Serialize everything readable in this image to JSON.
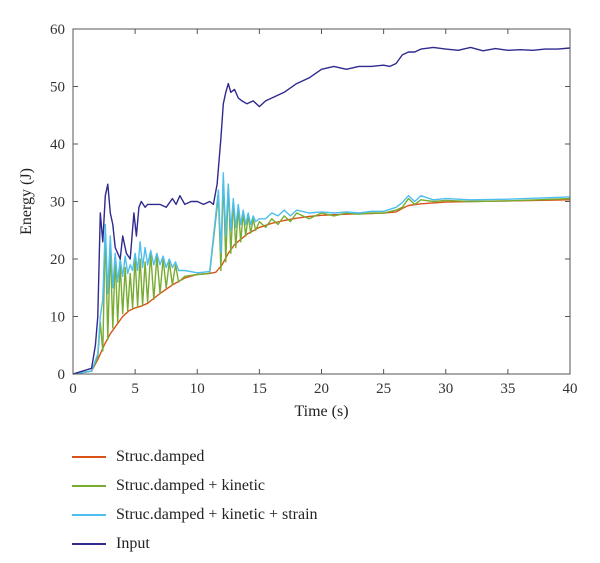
{
  "chart_data": {
    "type": "line",
    "xlabel": "Time (s)",
    "ylabel": "Energy (J)",
    "xlim": [
      0,
      40
    ],
    "ylim": [
      0,
      60
    ],
    "xticks": [
      "0",
      "5",
      "10",
      "15",
      "20",
      "25",
      "30",
      "35",
      "40"
    ],
    "yticks": [
      "0",
      "10",
      "20",
      "30",
      "40",
      "50",
      "60"
    ],
    "grid": false,
    "legend_position": "below",
    "series": [
      {
        "name": "Struc.damped",
        "color": "#d95319",
        "x": [
          0,
          1.5,
          2,
          2.5,
          3,
          3.5,
          4,
          4.5,
          5,
          5.5,
          6,
          7,
          8,
          9,
          10,
          11,
          11.5,
          12,
          12.5,
          13,
          14,
          15,
          16,
          17,
          18,
          19,
          20,
          22,
          24,
          25,
          26,
          26.5,
          27,
          28,
          30,
          32,
          35,
          40
        ],
        "y": [
          0,
          0.5,
          2.5,
          5,
          7,
          8.5,
          10,
          11,
          11.5,
          11.8,
          12.3,
          14,
          15.5,
          16.7,
          17.3,
          17.5,
          17.7,
          19,
          21,
          22.5,
          24.3,
          25.5,
          26.2,
          26.7,
          27.1,
          27.4,
          27.6,
          27.8,
          27.9,
          28,
          28.2,
          28.8,
          29.3,
          29.6,
          29.9,
          30,
          30.1,
          30.3
        ]
      },
      {
        "name": "Struc.damped + kinetic",
        "color": "#77ac30",
        "x": [
          0,
          1.5,
          2,
          2.2,
          2.4,
          2.6,
          2.8,
          3,
          3.2,
          3.4,
          3.6,
          3.8,
          4,
          4.2,
          4.4,
          4.6,
          4.8,
          5,
          5.2,
          5.4,
          5.6,
          5.8,
          6,
          6.25,
          6.5,
          6.75,
          7,
          7.25,
          7.5,
          7.75,
          8,
          8.25,
          8.5,
          9,
          10,
          11,
          11.7,
          11.9,
          12.1,
          12.3,
          12.5,
          12.7,
          12.9,
          13.1,
          13.3,
          13.5,
          13.7,
          13.9,
          14.1,
          14.3,
          14.5,
          14.7,
          15,
          15.5,
          16,
          16.5,
          17,
          17.5,
          18,
          19,
          20,
          21,
          22,
          23,
          24,
          25,
          26,
          26.5,
          27,
          27.5,
          28,
          29,
          30,
          32,
          35,
          40
        ],
        "y": [
          0,
          0.5,
          3,
          9,
          4,
          25,
          6,
          22,
          8,
          20,
          9,
          19,
          10.5,
          18.5,
          11,
          17.5,
          11.5,
          20,
          11.8,
          20,
          12,
          19.5,
          12.5,
          21,
          13,
          20.5,
          14,
          20,
          15,
          19.5,
          15.5,
          19,
          16,
          17,
          17.3,
          17.5,
          31,
          18,
          34,
          19.5,
          33,
          21,
          30,
          22,
          29,
          23,
          28,
          24,
          27.5,
          24.5,
          27,
          25,
          26.5,
          25.5,
          27,
          26,
          27.5,
          26.5,
          28,
          27,
          28,
          27.5,
          28,
          27.8,
          28,
          28,
          28.5,
          29,
          30.5,
          29.5,
          30.3,
          30,
          30.2,
          30,
          30.1,
          30.5
        ]
      },
      {
        "name": "Struc.damped + kinetic + strain",
        "color": "#4dbeee",
        "x": [
          0,
          1.5,
          2,
          2.2,
          2.4,
          2.6,
          2.8,
          3,
          3.2,
          3.4,
          3.6,
          3.8,
          4,
          4.2,
          4.4,
          4.6,
          4.8,
          5,
          5.2,
          5.4,
          5.6,
          5.8,
          6,
          6.25,
          6.5,
          6.75,
          7,
          7.25,
          7.5,
          7.75,
          8,
          8.25,
          8.5,
          9,
          10,
          11,
          11.7,
          11.9,
          12.1,
          12.3,
          12.5,
          12.7,
          12.9,
          13.1,
          13.3,
          13.5,
          13.7,
          13.9,
          14.1,
          14.3,
          14.5,
          14.7,
          15,
          15.5,
          16,
          16.5,
          17,
          17.5,
          18,
          19,
          20,
          21,
          22,
          23,
          24,
          25,
          26,
          26.5,
          27,
          27.5,
          28,
          29,
          30,
          32,
          35,
          40
        ],
        "y": [
          0,
          0.5,
          3.5,
          10,
          13,
          26,
          14,
          24,
          15,
          21,
          16,
          20,
          17,
          20.5,
          17.5,
          19,
          18,
          21,
          18,
          23,
          18.5,
          22,
          19,
          21.5,
          19,
          21,
          19,
          20.5,
          18.5,
          20,
          18.5,
          19.5,
          18,
          18,
          17.6,
          17.8,
          32,
          21,
          35,
          24,
          33,
          25,
          30.5,
          25.5,
          29.5,
          26,
          28.5,
          26,
          28,
          26,
          27.5,
          26.5,
          27,
          27,
          28,
          27.5,
          28.5,
          27.5,
          28.5,
          28,
          28.2,
          28,
          28.2,
          28,
          28.3,
          28.3,
          29,
          29.8,
          31,
          30,
          31,
          30.3,
          30.5,
          30.3,
          30.4,
          30.8
        ]
      },
      {
        "name": "Input",
        "color": "#2e2a8e",
        "x": [
          0,
          1.5,
          1.8,
          2,
          2.2,
          2.4,
          2.6,
          2.8,
          3,
          3.2,
          3.4,
          3.6,
          3.8,
          4,
          4.3,
          4.6,
          4.9,
          5.1,
          5.3,
          5.5,
          5.8,
          6,
          6.5,
          7,
          7.5,
          8,
          8.3,
          8.6,
          9,
          9.5,
          10,
          10.5,
          11,
          11.3,
          11.6,
          11.9,
          12.1,
          12.3,
          12.5,
          12.7,
          13,
          13.3,
          13.6,
          14,
          14.5,
          15,
          15.5,
          16,
          17,
          18,
          19,
          20,
          21,
          22,
          23,
          24,
          25,
          25.5,
          26,
          26.5,
          27,
          27.5,
          28,
          29,
          30,
          31,
          32,
          33,
          34,
          35,
          36,
          37,
          38,
          39,
          40
        ],
        "y": [
          0,
          1,
          5,
          10,
          28,
          23,
          31,
          33,
          28,
          26,
          22,
          21,
          20,
          24,
          21,
          20,
          28,
          24,
          29,
          30,
          29,
          29.5,
          29.5,
          29.5,
          29,
          30.5,
          29.5,
          31,
          29.5,
          30,
          30,
          29.5,
          30,
          29.5,
          33,
          41,
          47,
          49,
          50.5,
          49,
          49.5,
          48,
          47.5,
          47,
          47.5,
          46.5,
          47.5,
          48,
          49,
          50.5,
          51.5,
          53,
          53.5,
          53,
          53.5,
          53.5,
          53.7,
          53.5,
          54,
          55.5,
          56,
          56,
          56.5,
          56.8,
          56.5,
          56.3,
          56.8,
          56.2,
          56.6,
          56.3,
          56.4,
          56.3,
          56.5,
          56.5,
          56.7
        ]
      }
    ]
  }
}
